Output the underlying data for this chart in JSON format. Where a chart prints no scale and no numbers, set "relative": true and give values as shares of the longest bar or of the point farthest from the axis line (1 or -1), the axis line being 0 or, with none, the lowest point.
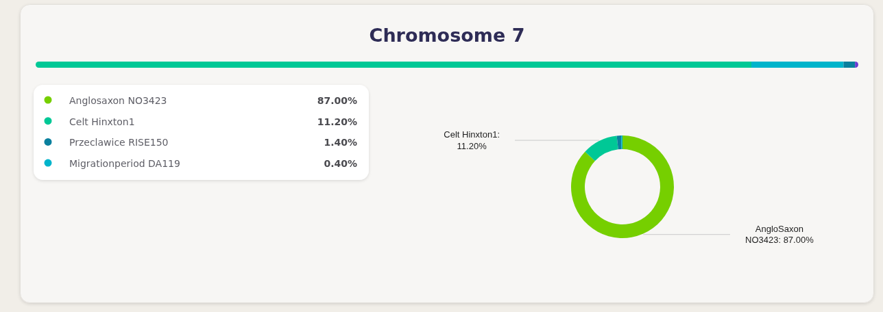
{
  "chart_data": [
    {
      "type": "bar",
      "title": "Chromosome 7",
      "orientation": "horizontal",
      "stacked": true,
      "relative": true,
      "categories": [
        null
      ],
      "series": [
        {
          "color": "#00c896",
          "values": [
            0.87
          ]
        },
        {
          "color": "#00b4cb",
          "values": [
            0.112
          ]
        },
        {
          "color": "#0a809e",
          "values": [
            0.014
          ]
        },
        {
          "color": "#6a3cd2",
          "values": [
            0.004
          ]
        }
      ]
    },
    {
      "type": "donut",
      "categories": [
        "Anglosaxon NO3423",
        "Celt Hinxton1",
        "Przeclawice RISE150",
        "Migrationperiod DA119"
      ],
      "values": [
        87,
        11.2,
        1.4,
        0.4
      ],
      "colors": [
        "#76cf00",
        "#00c896",
        "#0a809e",
        "#00b4cb"
      ],
      "legend": "left",
      "value_labels": [
        "87.00%",
        "11.20%",
        "1.40%",
        "0.40%"
      ],
      "annotations": [
        "AngloSaxon NO3423: 87.00%",
        "Celt Hinxton1: 11.20%"
      ]
    }
  ]
}
